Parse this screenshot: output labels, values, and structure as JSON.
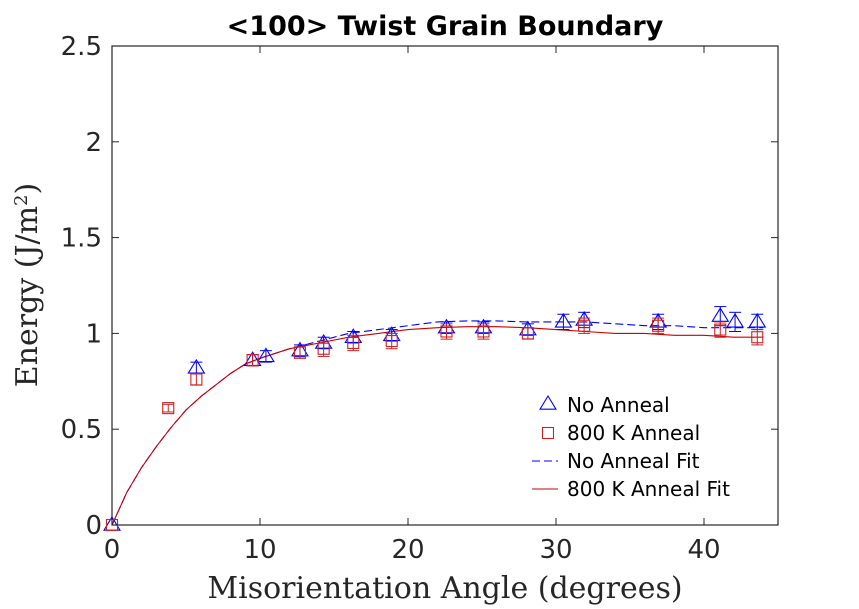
{
  "chart_data": {
    "type": "scatter",
    "title": "<100> Twist Grain Boundary",
    "xlabel": "Misorientation Angle (degrees)",
    "ylabel_main": "Energy (J/m",
    "ylabel_sup": "2",
    "ylabel_close": ")",
    "xlim": [
      0,
      45
    ],
    "ylim": [
      0,
      2.5
    ],
    "xticks": [
      0,
      10,
      20,
      30,
      40
    ],
    "xtick_labels": [
      "0",
      "10",
      "20",
      "30",
      "40"
    ],
    "yticks": [
      0,
      0.5,
      1,
      1.5,
      2,
      2.5
    ],
    "ytick_labels": [
      "0",
      "0.5",
      "1",
      "1.5",
      "2",
      "2.5"
    ],
    "grid": false,
    "legend_position": "lower-right",
    "series": [
      {
        "name": "No Anneal",
        "kind": "markers",
        "marker": "triangle",
        "color": "#0000ff",
        "x": [
          0,
          5.7,
          9.5,
          10.4,
          12.7,
          14.3,
          16.3,
          18.9,
          22.6,
          25.1,
          28.1,
          30.5,
          31.9,
          36.9,
          41.1,
          42.1,
          43.6
        ],
        "y": [
          0,
          0.82,
          0.86,
          0.88,
          0.91,
          0.95,
          0.98,
          0.99,
          1.03,
          1.03,
          1.02,
          1.06,
          1.07,
          1.06,
          1.09,
          1.06,
          1.06
        ],
        "err": [
          0,
          0.03,
          0.03,
          0.03,
          0.03,
          0.03,
          0.03,
          0.03,
          0.03,
          0.03,
          0.03,
          0.04,
          0.04,
          0.04,
          0.05,
          0.05,
          0.04
        ]
      },
      {
        "name": "800 K Anneal",
        "kind": "markers",
        "marker": "square",
        "color": "#cc2222",
        "x": [
          0,
          3.8,
          5.7,
          9.5,
          12.7,
          14.3,
          16.3,
          18.9,
          22.6,
          25.1,
          28.1,
          31.9,
          36.9,
          41.1,
          43.6
        ],
        "y": [
          0,
          0.61,
          0.76,
          0.86,
          0.9,
          0.92,
          0.95,
          0.96,
          1.01,
          1.01,
          1.0,
          1.04,
          1.04,
          1.02,
          0.98
        ],
        "err": [
          0,
          0.02,
          0.03,
          0.03,
          0.03,
          0.04,
          0.04,
          0.04,
          0.04,
          0.04,
          0.03,
          0.04,
          0.04,
          0.04,
          0.04
        ]
      },
      {
        "name": "No Anneal Fit",
        "kind": "line",
        "dash": true,
        "color": "#0000ff",
        "x": [
          0,
          1,
          2,
          3,
          4,
          5,
          6,
          7,
          8,
          9,
          10,
          12,
          14,
          16,
          18,
          20,
          22,
          24,
          26,
          28,
          30,
          32,
          34,
          36,
          38,
          40,
          42,
          44
        ],
        "y": [
          0,
          0.17,
          0.3,
          0.41,
          0.51,
          0.6,
          0.67,
          0.73,
          0.79,
          0.84,
          0.87,
          0.92,
          0.96,
          1.0,
          1.02,
          1.04,
          1.06,
          1.065,
          1.065,
          1.06,
          1.06,
          1.06,
          1.05,
          1.04,
          1.04,
          1.03,
          1.03,
          1.03
        ]
      },
      {
        "name": "800 K Anneal Fit",
        "kind": "line",
        "dash": false,
        "color": "#cc0000",
        "x": [
          0,
          1,
          2,
          3,
          4,
          5,
          6,
          7,
          8,
          9,
          10,
          12,
          14,
          16,
          18,
          20,
          22,
          24,
          26,
          28,
          30,
          32,
          34,
          36,
          38,
          40,
          42,
          44
        ],
        "y": [
          0,
          0.17,
          0.3,
          0.41,
          0.51,
          0.6,
          0.67,
          0.73,
          0.79,
          0.84,
          0.87,
          0.92,
          0.95,
          0.98,
          1.0,
          1.02,
          1.03,
          1.035,
          1.035,
          1.03,
          1.02,
          1.01,
          1.0,
          1.0,
          0.99,
          0.99,
          0.98,
          0.98
        ]
      }
    ]
  }
}
